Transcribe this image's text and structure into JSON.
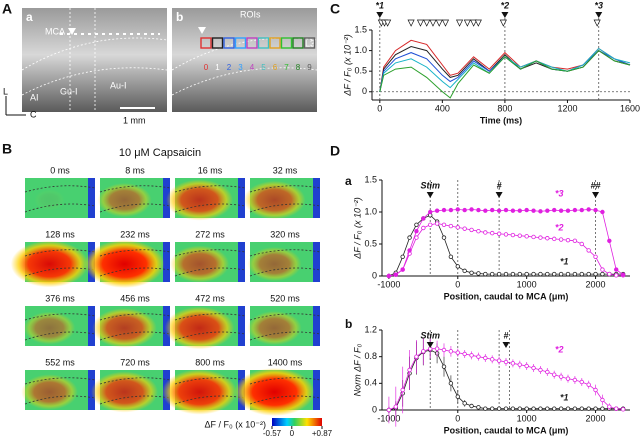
{
  "panel_a": {
    "label": "A",
    "sub_a": "a",
    "sub_b": "b",
    "mca": "MCA",
    "rois_title": "ROIs",
    "layer": "L3",
    "regions": [
      "AI",
      "Gu-I",
      "Au-I"
    ],
    "axis_l": "L",
    "axis_c": "C",
    "scale_bar": "1 mm",
    "roi_labels": [
      "0",
      "1",
      "2",
      "3",
      "4",
      "5",
      "6",
      "7",
      "8",
      "9"
    ]
  },
  "panel_b": {
    "label": "B",
    "title": "10 μM Capsaicin",
    "frames": [
      "0 ms",
      "8 ms",
      "16 ms",
      "32 ms",
      "128 ms",
      "232 ms",
      "272 ms",
      "320 ms",
      "376 ms",
      "456 ms",
      "472 ms",
      "520 ms",
      "552 ms",
      "720 ms",
      "800 ms",
      "1400 ms"
    ],
    "colorbar": {
      "label": "ΔF / F₀ (x 10⁻²)",
      "clim": [
        -0.57,
        0.87
      ],
      "ticks": [
        -0.57,
        0,
        {
          "value": 0.87,
          "label": "+0.87"
        }
      ]
    }
  },
  "chart_data": [
    {
      "type": "line",
      "panel_label": "C",
      "xlabel": "Time (ms)",
      "ylabel": "ΔF / F₀ (x 10⁻²)",
      "x": [
        0,
        25,
        100,
        200,
        300,
        400,
        450,
        500,
        600,
        700,
        800,
        900,
        1000,
        1100,
        1200,
        1300,
        1400,
        1500,
        1600
      ],
      "series": [
        {
          "color": "#d62728",
          "values": [
            0,
            0.6,
            1.0,
            1.25,
            1.15,
            0.65,
            0.4,
            0.45,
            0.85,
            0.55,
            0.95,
            0.6,
            0.75,
            0.6,
            0.55,
            0.65,
            1.05,
            0.8,
            0.65
          ]
        },
        {
          "color": "#222222",
          "values": [
            0,
            0.55,
            0.9,
            1.1,
            1.0,
            0.55,
            0.35,
            0.4,
            0.8,
            0.5,
            0.9,
            0.55,
            0.7,
            0.55,
            0.5,
            0.6,
            1.0,
            0.75,
            0.65
          ]
        },
        {
          "color": "#1f4fd6",
          "values": [
            0,
            0.5,
            0.8,
            0.95,
            0.8,
            0.4,
            0.25,
            0.35,
            0.75,
            0.5,
            0.85,
            0.55,
            0.75,
            0.55,
            0.5,
            0.65,
            1.0,
            0.8,
            0.65
          ]
        },
        {
          "color": "#17b3c8",
          "values": [
            0,
            0.45,
            0.7,
            0.8,
            0.6,
            0.25,
            0.1,
            0.3,
            0.7,
            0.45,
            0.85,
            0.6,
            0.75,
            0.6,
            0.5,
            0.65,
            1.05,
            0.8,
            0.7
          ]
        },
        {
          "color": "#2ca02c",
          "values": [
            0,
            0.4,
            0.55,
            0.6,
            0.35,
            0.0,
            -0.15,
            0.2,
            0.65,
            0.45,
            0.85,
            0.55,
            0.75,
            0.55,
            0.5,
            0.6,
            1.0,
            0.75,
            0.65
          ]
        }
      ],
      "xlim": [
        -50,
        1600
      ],
      "ylim": [
        -0.2,
        1.5
      ],
      "xticks": [
        0,
        400,
        800,
        1200,
        1600
      ],
      "yticks": [
        0,
        0.5,
        {
          "value": 1,
          "label": "1.0"
        },
        1.5
      ],
      "hline": 0,
      "vlines": [
        0,
        800,
        1400
      ],
      "annotations": [
        {
          "text": "*1",
          "x": 0
        },
        {
          "text": "*2",
          "x": 800
        },
        {
          "text": "*3",
          "x": 1400
        }
      ],
      "events": [
        10,
        30,
        50,
        200,
        260,
        300,
        340,
        380,
        420,
        510,
        560,
        600,
        630,
        790,
        1390
      ]
    },
    {
      "type": "line",
      "panel_label": "D",
      "sublabel": "a",
      "xlabel": "Position, caudal to MCA (μm)",
      "ylabel": "ΔF / F₀ (x 10⁻²)",
      "x": [
        -1000,
        -900,
        -800,
        -700,
        -600,
        -500,
        -400,
        -300,
        -200,
        -100,
        0,
        100,
        200,
        300,
        400,
        500,
        600,
        700,
        800,
        900,
        1000,
        1100,
        1200,
        1300,
        1400,
        1500,
        1600,
        1700,
        1800,
        1900,
        2000,
        2100,
        2200,
        2300,
        2400
      ],
      "series": [
        {
          "name": "*1",
          "color": "#222222",
          "marker": "open",
          "values": [
            0,
            0.05,
            0.3,
            0.6,
            0.8,
            0.9,
            0.95,
            0.85,
            0.6,
            0.3,
            0.15,
            0.08,
            0.05,
            0.04,
            0.03,
            0.03,
            0.03,
            0.03,
            0.03,
            0.03,
            0.03,
            0.03,
            0.03,
            0.03,
            0.03,
            0.03,
            0.03,
            0.03,
            0.03,
            0.03,
            0.03,
            0.03,
            0.03,
            0.03,
            0.03
          ]
        },
        {
          "name": "*2",
          "color": "#e020e0",
          "marker": "open",
          "values": [
            0,
            0.02,
            0.1,
            0.35,
            0.6,
            0.75,
            0.8,
            0.82,
            0.8,
            0.78,
            0.76,
            0.74,
            0.72,
            0.7,
            0.68,
            0.67,
            0.66,
            0.65,
            0.64,
            0.63,
            0.62,
            0.61,
            0.6,
            0.59,
            0.58,
            0.57,
            0.56,
            0.55,
            0.5,
            0.4,
            0.3,
            0.1,
            0.03,
            0.01,
            0.01
          ]
        },
        {
          "name": "*3",
          "color": "#e020e0",
          "marker": "filled",
          "values": [
            0,
            0.02,
            0.1,
            0.4,
            0.7,
            0.9,
            1.0,
            1.02,
            1.03,
            1.03,
            1.04,
            1.03,
            1.04,
            1.03,
            1.02,
            1.03,
            1.02,
            1.03,
            1.02,
            1.02,
            1.03,
            1.02,
            1.01,
            1.02,
            1.03,
            1.02,
            1.02,
            1.03,
            1.03,
            1.04,
            1.03,
            1.0,
            0.55,
            0.1,
            0.02
          ]
        }
      ],
      "xlim": [
        -1100,
        2500
      ],
      "ylim": [
        0,
        1.5
      ],
      "xticks": [
        -1000,
        0,
        1000,
        2000
      ],
      "yticks": [
        0,
        0.5,
        {
          "value": 1,
          "label": "1.0"
        },
        1.5
      ],
      "vlines": [
        -400,
        0,
        600,
        2000
      ],
      "annotations": [
        {
          "text": "Stim",
          "x": -400
        },
        {
          "text": "#",
          "x": 600
        },
        {
          "text": "##",
          "x": 2000
        }
      ]
    },
    {
      "type": "line",
      "sublabel": "b",
      "xlabel": "Position, caudal to MCA (μm)",
      "ylabel": "Norm ΔF / F₀",
      "x": [
        -1000,
        -900,
        -800,
        -700,
        -600,
        -500,
        -400,
        -300,
        -200,
        -100,
        0,
        100,
        200,
        300,
        400,
        500,
        600,
        700,
        800,
        900,
        1000,
        1100,
        1200,
        1300,
        1400,
        1500,
        1600,
        1700,
        1800,
        1900,
        2000,
        2100,
        2200,
        2300,
        2400
      ],
      "series": [
        {
          "name": "*1",
          "color": "#222222",
          "marker": "open",
          "values": [
            0,
            0.03,
            0.25,
            0.55,
            0.78,
            0.87,
            0.9,
            0.85,
            0.65,
            0.4,
            0.2,
            0.1,
            0.06,
            0.04,
            0.02,
            0.02,
            0.02,
            0.02,
            0.02,
            0.02,
            0.02,
            0.02,
            0.02,
            0.02,
            0.02,
            0.02,
            0.02,
            0.02,
            0.02,
            0.02,
            0.02,
            0.02,
            0.02,
            0.02,
            0.02
          ],
          "errors": [
            0.05,
            0.1,
            0.2,
            0.25,
            0.25,
            0.2,
            0.15,
            0.15,
            0.15,
            0.12,
            0.1,
            0.05,
            0.03,
            0.02,
            0.02,
            0.02,
            0.02,
            0.02,
            0.02,
            0.02,
            0.02,
            0.02,
            0.02,
            0.02,
            0.02,
            0.02,
            0.02,
            0.02,
            0.02,
            0.02,
            0.02,
            0.02,
            0.02,
            0.02,
            0.02
          ]
        },
        {
          "name": "*2",
          "color": "#e020e0",
          "marker": "open",
          "values": [
            0,
            0.05,
            0.3,
            0.6,
            0.8,
            0.88,
            0.92,
            0.92,
            0.9,
            0.88,
            0.86,
            0.84,
            0.82,
            0.8,
            0.78,
            0.76,
            0.74,
            0.72,
            0.7,
            0.68,
            0.66,
            0.63,
            0.6,
            0.57,
            0.53,
            0.5,
            0.47,
            0.45,
            0.42,
            0.38,
            0.3,
            0.15,
            0.05,
            0.02,
            0.01
          ],
          "errors": [
            0.2,
            0.3,
            0.35,
            0.3,
            0.25,
            0.2,
            0.15,
            0.12,
            0.1,
            0.08,
            0.06,
            0.06,
            0.06,
            0.06,
            0.06,
            0.06,
            0.06,
            0.06,
            0.06,
            0.06,
            0.06,
            0.06,
            0.06,
            0.06,
            0.06,
            0.06,
            0.06,
            0.06,
            0.06,
            0.06,
            0.08,
            0.08,
            0.05,
            0.03,
            0.02
          ]
        }
      ],
      "xlim": [
        -1100,
        2500
      ],
      "ylim": [
        0,
        1.2
      ],
      "xticks": [
        -1000,
        0,
        1000,
        2000
      ],
      "yticks": [
        0,
        0.4,
        0.8,
        1.2
      ],
      "vlines": [
        -400,
        0,
        600,
        750
      ],
      "annotations": [
        {
          "text": "Stim",
          "x": -400
        },
        {
          "text": "#",
          "x": 700
        }
      ]
    }
  ]
}
